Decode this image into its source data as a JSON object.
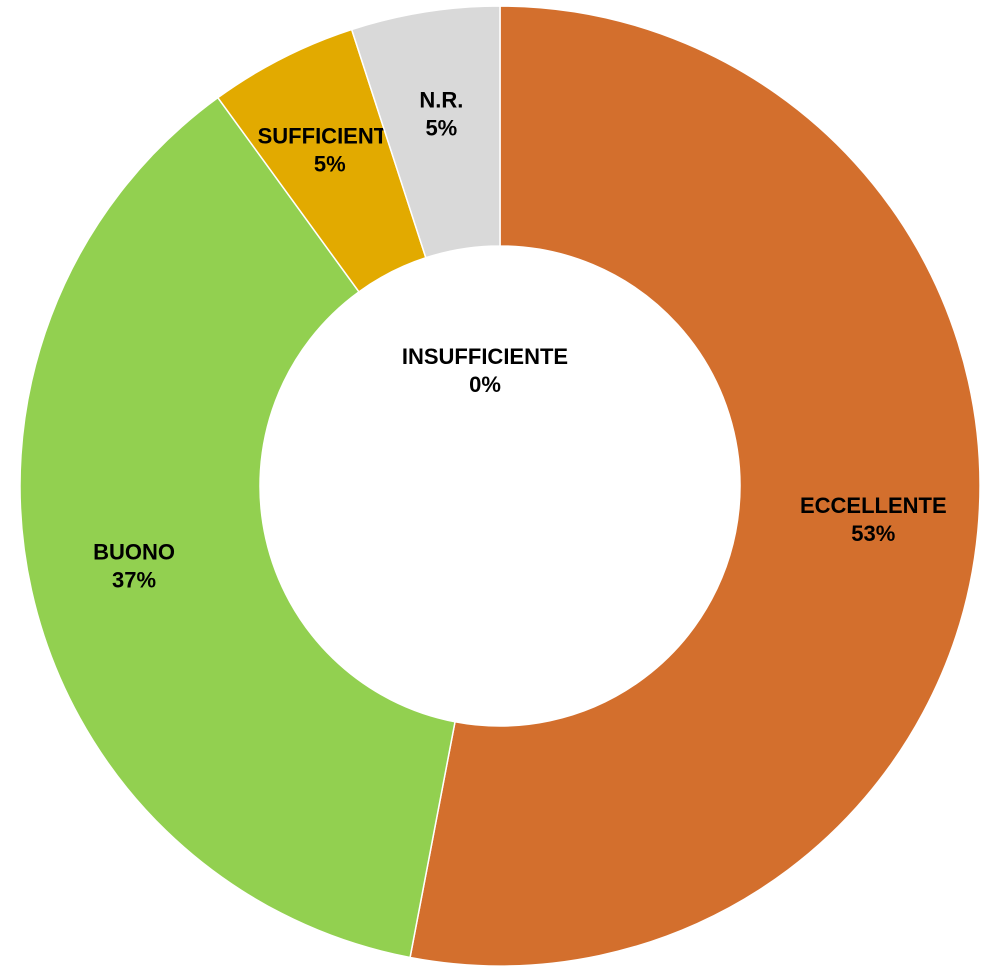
{
  "chart_data": {
    "type": "donut",
    "categories": [
      "ECCELLENTE",
      "BUONO",
      "SUFFICIENTE",
      "INSUFFICIENTE",
      "N.R."
    ],
    "values": [
      53,
      37,
      5,
      0,
      5
    ],
    "value_labels": [
      "53%",
      "37%",
      "5%",
      "0%",
      "5%"
    ],
    "colors": [
      "#d36f2d",
      "#92d050",
      "#e2aa00",
      "#c00000",
      "#d9d9d9"
    ]
  }
}
